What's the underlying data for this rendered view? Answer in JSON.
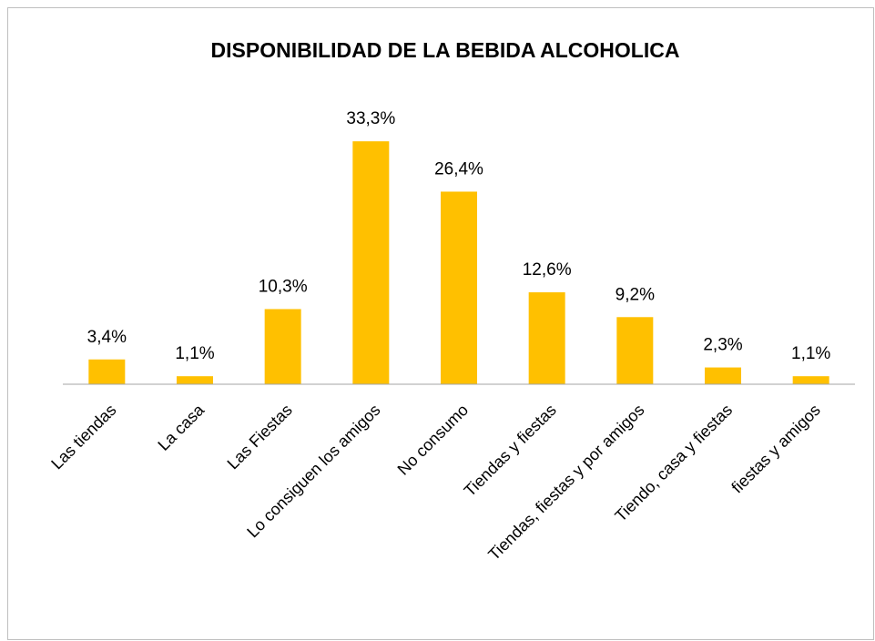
{
  "chart_data": {
    "type": "bar",
    "title": "DISPONIBILIDAD DE LA BEBIDA ALCOHOLICA",
    "categories": [
      "Las tiendas",
      "La casa",
      "Las Fiestas",
      "Lo consiguen los amigos",
      "No consumo",
      "Tiendas y fiestas",
      "Tiendas, fiestas y por amigos",
      "Tiendo, casa y fiestas",
      "fiestas y amigos"
    ],
    "values": [
      3.4,
      1.1,
      10.3,
      33.3,
      26.4,
      12.6,
      9.2,
      2.3,
      1.1
    ],
    "value_labels": [
      "3,4%",
      "1,1%",
      "10,3%",
      "33,3%",
      "26,4%",
      "12,6%",
      "9,2%",
      "2,3%",
      "1,1%"
    ],
    "color": "#ffc000",
    "ylim": [
      0,
      40
    ]
  }
}
